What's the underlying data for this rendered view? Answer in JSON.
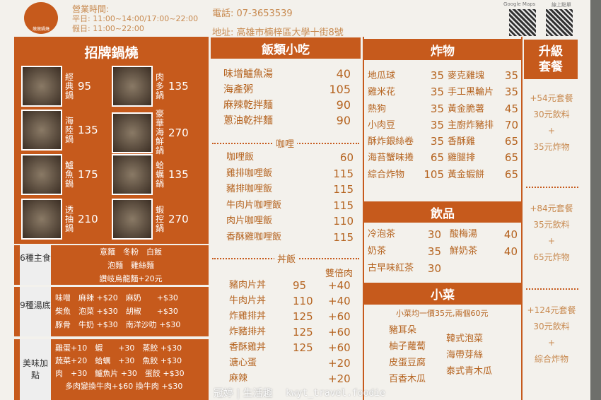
{
  "header": {
    "logo_text": "燉燉鍋燒",
    "hours_title": "營業時間:",
    "weekday": "平日: 11:00~14:00/17:00~22:00",
    "holiday": "假日: 11:00~22:00",
    "phone": "電話: 07-3653539",
    "address": "地址: 高雄市楠梓區大學十街8號",
    "maps_label": "Google Maps",
    "online_label": "線上點單"
  },
  "hotpot": {
    "title": "招牌鍋燒",
    "items": [
      {
        "name": "經典鍋",
        "price": "95"
      },
      {
        "name": "海陸鍋",
        "price": "135"
      },
      {
        "name": "鱸魚鍋",
        "price": "175"
      },
      {
        "name": "透抽鍋",
        "price": "210"
      },
      {
        "name": "肉多鍋",
        "price": "135"
      },
      {
        "name": "豪華海鮮鍋",
        "price": "270"
      },
      {
        "name": "蛤蠣鍋",
        "price": "135"
      },
      {
        "name": "蝦控鍋",
        "price": "270"
      }
    ]
  },
  "staples": {
    "label": "6種主食",
    "lines": [
      "意麵　冬粉　白飯",
      "泡麵　雞絲麵",
      "讚岐烏龍麵+20元"
    ]
  },
  "soups": {
    "label": "9種湯底",
    "lines": [
      "味噌　麻辣 +$20　麻奶　　+$30",
      "柴魚　泡菜 +$30　胡椒　　+$30",
      "豚骨　牛奶 +$30　南洋沙叻 +$30"
    ]
  },
  "addons": {
    "label": "美味加點",
    "lines": [
      "雞蛋+10　蝦　　+30　蒸餃 +$30",
      "蔬菜+20　蛤蠣　+30　魚餃 +$30",
      "肉　+30　鱸魚片 +30　蛋餃 +$30",
      "多肉變換牛肉+$60 換牛肉 +$30"
    ]
  },
  "rice": {
    "title": "飯類小吃",
    "items": [
      {
        "name": "味增鱸魚湯",
        "price": "40"
      },
      {
        "name": "海產粥",
        "price": "105"
      },
      {
        "name": "麻辣乾拌麵",
        "price": "90"
      },
      {
        "name": "蔥油乾拌麵",
        "price": "90"
      }
    ],
    "curry_label": "咖哩",
    "curry": [
      {
        "name": "咖哩飯",
        "price": "60"
      },
      {
        "name": "雞排咖哩飯",
        "price": "115"
      },
      {
        "name": "豬排咖哩飯",
        "price": "115"
      },
      {
        "name": "牛肉片咖哩飯",
        "price": "115"
      },
      {
        "name": "肉片咖哩飯",
        "price": "110"
      },
      {
        "name": "香酥雞咖哩飯",
        "price": "115"
      }
    ],
    "don_label": "丼飯",
    "double_label": "雙倍肉",
    "don": [
      {
        "name": "豬肉片丼",
        "price": "95",
        "extra": "+40"
      },
      {
        "name": "牛肉片丼",
        "price": "110",
        "extra": "+40"
      },
      {
        "name": "炸雞排丼",
        "price": "125",
        "extra": "+60"
      },
      {
        "name": "炸豬排丼",
        "price": "125",
        "extra": "+60"
      },
      {
        "name": "香酥雞丼",
        "price": "125",
        "extra": "+60"
      },
      {
        "name": "溏心蛋",
        "price": "",
        "extra": "+20"
      },
      {
        "name": "麻辣",
        "price": "",
        "extra": "+20"
      }
    ]
  },
  "fried": {
    "title": "炸物",
    "left": [
      {
        "name": "地瓜球",
        "price": "35"
      },
      {
        "name": "雞米花",
        "price": "35"
      },
      {
        "name": "熱狗",
        "price": "35"
      },
      {
        "name": "小肉豆",
        "price": "35"
      },
      {
        "name": "酥炸銀絲卷",
        "price": "35"
      },
      {
        "name": "海苔蟹味捲",
        "price": "65"
      },
      {
        "name": "綜合炸物",
        "price": "105"
      }
    ],
    "right": [
      {
        "name": "麥克雞塊",
        "price": "35"
      },
      {
        "name": "手工黑輪片",
        "price": "35"
      },
      {
        "name": "黃金脆薯",
        "price": "45"
      },
      {
        "name": "主廚炸豬排",
        "price": "70"
      },
      {
        "name": "香酥雞",
        "price": "65"
      },
      {
        "name": "雞腿排",
        "price": "65"
      },
      {
        "name": "黃金蝦餅",
        "price": "65"
      }
    ]
  },
  "drinks": {
    "title": "飲品",
    "left": [
      {
        "name": "冷泡茶",
        "price": "30"
      },
      {
        "name": "奶茶",
        "price": "35"
      },
      {
        "name": "古早味紅茶",
        "price": "30"
      }
    ],
    "right": [
      {
        "name": "酸梅湯",
        "price": "40"
      },
      {
        "name": "鮮奶茶",
        "price": "40"
      }
    ]
  },
  "sides": {
    "title": "小菜",
    "note": "小菜均一價35元,兩個60元",
    "left": [
      "豬耳朵",
      "柚子蘿蔔",
      "皮蛋豆腐",
      "百香木瓜"
    ],
    "right": [
      "韓式泡菜",
      "海帶芽絲",
      "泰式青木瓜"
    ]
  },
  "combo": {
    "title": "升級套餐",
    "sets": [
      {
        "price": "+54元套餐",
        "a": "30元飲料",
        "plus": "+",
        "b": "35元炸物"
      },
      {
        "price": "+84元套餐",
        "a": "35元飲料",
        "plus": "+",
        "b": "65元炸物"
      },
      {
        "price": "+124元套餐",
        "a": "30元飲料",
        "plus": "+",
        "b": "綜合炸物"
      }
    ]
  },
  "watermark": {
    "line1": "冠婷 | 生活趣",
    "line2": "kwyt_travel.foodie"
  },
  "colors": {
    "accent": "#c65a1c",
    "text": "#b5631f"
  }
}
